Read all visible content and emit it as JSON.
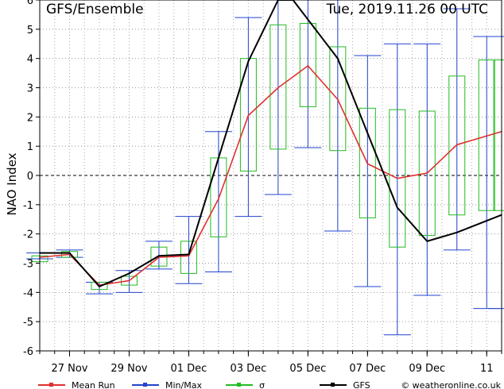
{
  "chart_data": {
    "type": "line",
    "title": "GFS/Ensemble",
    "subtitle": "Tue, 2019.11.26  00 UTC",
    "ylabel": "NAO Index",
    "xlabel": "",
    "ylim": [
      -6,
      6
    ],
    "yticks": [
      -6,
      -5,
      -4,
      -3,
      -2,
      -1,
      0,
      1,
      2,
      3,
      4,
      5,
      6
    ],
    "grid": true,
    "legend_position": "bottom",
    "x": [
      0,
      0.5,
      1,
      1.5,
      2,
      2.5,
      3,
      3.5,
      4,
      4.5,
      5,
      5.5,
      6,
      6.5,
      7,
      7.5,
      8,
      8.5,
      9,
      9.5,
      10,
      10.5,
      11,
      11.5,
      12,
      12.5,
      13,
      13.5,
      14,
      14.5,
      15,
      15.5
    ],
    "xticks": [
      {
        "x": 1,
        "label": "27 Nov"
      },
      {
        "x": 3,
        "label": "29 Nov"
      },
      {
        "x": 5,
        "label": "01 Dec"
      },
      {
        "x": 7,
        "label": "03 Dec"
      },
      {
        "x": 9,
        "label": "05 Dec"
      },
      {
        "x": 11,
        "label": "07 Dec"
      },
      {
        "x": 13,
        "label": "09 Dec"
      },
      {
        "x": 15,
        "label": "11"
      }
    ],
    "box_x": [
      0,
      1,
      2,
      3,
      4,
      5,
      6,
      7,
      8,
      9,
      10,
      11,
      12,
      13,
      14,
      15,
      15.5
    ],
    "series": [
      {
        "name": "Mean Run",
        "color": "#e03030",
        "x": [
          0,
          1,
          2,
          3,
          4,
          5,
          6,
          7,
          8,
          9,
          10,
          11,
          12,
          13,
          14,
          15,
          15.5
        ],
        "values": [
          -2.8,
          -2.7,
          -3.75,
          -3.6,
          -2.8,
          -2.75,
          -0.8,
          2.05,
          3.0,
          3.75,
          2.6,
          0.4,
          -0.1,
          0.08,
          1.05,
          1.35,
          1.5
        ]
      },
      {
        "name": "GFS",
        "color": "#000000",
        "x": [
          0,
          1,
          2,
          3,
          4,
          5,
          6,
          7,
          8,
          8.5,
          10,
          12,
          13,
          14,
          15.5
        ],
        "values": [
          -2.65,
          -2.65,
          -3.8,
          -3.35,
          -2.75,
          -2.7,
          0.6,
          3.9,
          6.2,
          6.2,
          4.0,
          -1.1,
          -2.25,
          -1.95,
          -1.35
        ]
      }
    ],
    "min_max": {
      "name": "Min/Max",
      "color": "#2244cc",
      "min": [
        -2.85,
        -2.8,
        -4.05,
        -4.0,
        -3.2,
        -3.7,
        -3.3,
        -1.4,
        -0.65,
        0.95,
        -1.9,
        -3.8,
        -5.45,
        -4.1,
        -2.55,
        -4.55,
        -4.55
      ],
      "max": [
        -2.65,
        -2.55,
        -3.65,
        -3.25,
        -2.25,
        -1.4,
        1.5,
        5.4,
        6.2,
        6.2,
        6.2,
        4.1,
        4.5,
        4.5,
        5.7,
        4.75,
        4.75
      ]
    },
    "sigma": {
      "name": "σ",
      "color": "#22bb22",
      "low": [
        -2.95,
        -2.8,
        -3.9,
        -3.75,
        -3.1,
        -3.35,
        -2.1,
        0.15,
        0.9,
        2.35,
        0.85,
        -1.45,
        -2.45,
        -2.05,
        -1.35,
        -1.2,
        -1.2
      ],
      "high": [
        -2.75,
        -2.6,
        -3.65,
        -3.45,
        -2.45,
        -2.25,
        0.6,
        4.0,
        5.15,
        5.2,
        4.4,
        2.3,
        2.25,
        2.2,
        3.4,
        3.95,
        3.95
      ]
    },
    "legend": [
      {
        "key": "mean",
        "label": "Mean Run",
        "color": "#e03030"
      },
      {
        "key": "minmax",
        "label": "Min/Max",
        "color": "#2244cc"
      },
      {
        "key": "sigma",
        "label": "σ",
        "color": "#22bb22"
      },
      {
        "key": "gfs",
        "label": "GFS",
        "color": "#000000"
      }
    ],
    "credit": "© weatheronline.co.uk"
  }
}
